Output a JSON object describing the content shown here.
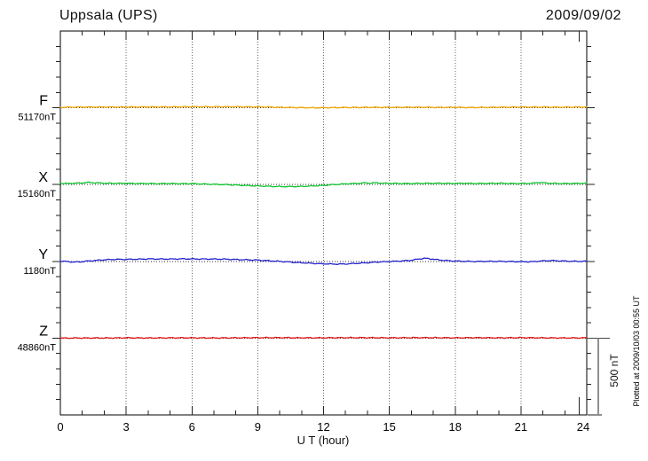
{
  "chart_data": {
    "type": "line",
    "title": "Uppsala (UPS)",
    "date": "2009/09/02",
    "xlabel": "U T (hour)",
    "plotted_note": "Plotted at 2009/10/03 00:55 UT",
    "x_range_hours": [
      0,
      24
    ],
    "x_major_tick_hours": [
      0,
      3,
      6,
      9,
      12,
      15,
      18,
      21,
      24
    ],
    "x_minor_tick_step_hours": 1,
    "x_gridline_hours": [
      3,
      6,
      9,
      12,
      15,
      18,
      21
    ],
    "y_total_span_nT": 2500,
    "y_minor_tick_step_nT": 100,
    "series_spacing_nT": 500,
    "grid": "dotted",
    "legend_position": "left-of-baselines",
    "scale_bar": {
      "label": "500 nT",
      "span_nT": 500
    },
    "series": [
      {
        "name": "F",
        "value_label": "51170nT",
        "baseline_nT": 51170,
        "color": "#F0A500",
        "offsets_nT": [
          [
            0,
            3
          ],
          [
            0.5,
            4
          ],
          [
            1,
            5
          ],
          [
            2,
            5
          ],
          [
            3,
            5
          ],
          [
            4,
            6
          ],
          [
            5,
            6
          ],
          [
            6,
            7
          ],
          [
            7,
            7
          ],
          [
            8,
            7
          ],
          [
            9,
            6
          ],
          [
            9.5,
            5
          ],
          [
            10,
            3
          ],
          [
            10.5,
            2
          ],
          [
            11,
            1
          ],
          [
            11.5,
            0
          ],
          [
            12,
            0
          ],
          [
            12.5,
            1
          ],
          [
            13,
            2
          ],
          [
            14,
            3
          ],
          [
            15,
            3
          ],
          [
            16,
            4
          ],
          [
            17,
            3
          ],
          [
            18,
            3
          ],
          [
            18.5,
            2
          ],
          [
            19,
            2
          ],
          [
            20,
            4
          ],
          [
            21,
            5
          ],
          [
            22,
            5
          ],
          [
            22.5,
            4
          ],
          [
            23,
            4
          ],
          [
            23.5,
            5
          ],
          [
            24,
            5
          ]
        ]
      },
      {
        "name": "X",
        "value_label": "15160nT",
        "baseline_nT": 15160,
        "color": "#0CC52C",
        "offsets_nT": [
          [
            0,
            8
          ],
          [
            0.3,
            7
          ],
          [
            0.7,
            9
          ],
          [
            1,
            11
          ],
          [
            1.3,
            14
          ],
          [
            1.6,
            12
          ],
          [
            2,
            9
          ],
          [
            2.5,
            8
          ],
          [
            3,
            8
          ],
          [
            3.5,
            7
          ],
          [
            4,
            7
          ],
          [
            4.5,
            6
          ],
          [
            5,
            7
          ],
          [
            5.5,
            6
          ],
          [
            6,
            6
          ],
          [
            6.5,
            4
          ],
          [
            7,
            2
          ],
          [
            7.5,
            0
          ],
          [
            8,
            -3
          ],
          [
            8.5,
            -6
          ],
          [
            9,
            -9
          ],
          [
            9.5,
            -11
          ],
          [
            10,
            -13
          ],
          [
            10.5,
            -13
          ],
          [
            11,
            -12
          ],
          [
            11.5,
            -9
          ],
          [
            12,
            -5
          ],
          [
            12.4,
            -1
          ],
          [
            12.8,
            3
          ],
          [
            13.2,
            6
          ],
          [
            13.6,
            8
          ],
          [
            13.9,
            12
          ],
          [
            14.1,
            9
          ],
          [
            14.4,
            12
          ],
          [
            14.7,
            9
          ],
          [
            15,
            8
          ],
          [
            15.5,
            7
          ],
          [
            16,
            7
          ],
          [
            16.5,
            8
          ],
          [
            17,
            9
          ],
          [
            17.5,
            8
          ],
          [
            18,
            7
          ],
          [
            18.4,
            9
          ],
          [
            18.8,
            7
          ],
          [
            19.2,
            7
          ],
          [
            19.6,
            8
          ],
          [
            20,
            9
          ],
          [
            20.5,
            7
          ],
          [
            21,
            7
          ],
          [
            21.5,
            8
          ],
          [
            21.8,
            14
          ],
          [
            22.1,
            11
          ],
          [
            22.4,
            8
          ],
          [
            22.8,
            7
          ],
          [
            23.2,
            7
          ],
          [
            23.6,
            8
          ],
          [
            24,
            9
          ]
        ]
      },
      {
        "name": "Y",
        "value_label": "1180nT",
        "baseline_nT": 1180,
        "color": "#2222CC",
        "offsets_nT": [
          [
            0,
            2
          ],
          [
            0.3,
            -1
          ],
          [
            0.6,
            -5
          ],
          [
            0.9,
            -3
          ],
          [
            1.2,
            1
          ],
          [
            1.5,
            5
          ],
          [
            2,
            10
          ],
          [
            2.5,
            13
          ],
          [
            3,
            13
          ],
          [
            3.5,
            14
          ],
          [
            4,
            16
          ],
          [
            4.5,
            15
          ],
          [
            5,
            15
          ],
          [
            5.5,
            16
          ],
          [
            6,
            16
          ],
          [
            6.5,
            15
          ],
          [
            7,
            15
          ],
          [
            7.5,
            14
          ],
          [
            8,
            12
          ],
          [
            8.5,
            10
          ],
          [
            9,
            8
          ],
          [
            9.5,
            4
          ],
          [
            10,
            0
          ],
          [
            10.5,
            -5
          ],
          [
            11,
            -9
          ],
          [
            11.5,
            -13
          ],
          [
            12,
            -16
          ],
          [
            12.5,
            -18
          ],
          [
            13,
            -17
          ],
          [
            13.5,
            -13
          ],
          [
            14,
            -9
          ],
          [
            14.5,
            -4
          ],
          [
            15,
            -1
          ],
          [
            15.5,
            2
          ],
          [
            16,
            7
          ],
          [
            16.3,
            14
          ],
          [
            16.6,
            20
          ],
          [
            16.9,
            16
          ],
          [
            17.2,
            10
          ],
          [
            17.6,
            5
          ],
          [
            18,
            2
          ],
          [
            18.5,
            0
          ],
          [
            19,
            -1
          ],
          [
            19.5,
            0
          ],
          [
            20,
            0
          ],
          [
            20.5,
            -1
          ],
          [
            21,
            -2
          ],
          [
            21.4,
            -3
          ],
          [
            21.8,
            1
          ],
          [
            22.1,
            4
          ],
          [
            22.4,
            5
          ],
          [
            22.8,
            3
          ],
          [
            23.2,
            1
          ],
          [
            23.6,
            0
          ],
          [
            24,
            1
          ]
        ]
      },
      {
        "name": "Z",
        "value_label": "48860nT",
        "baseline_nT": 48860,
        "color": "#DD1414",
        "offsets_nT": [
          [
            0,
            0
          ],
          [
            1,
            1
          ],
          [
            2,
            1
          ],
          [
            3,
            2
          ],
          [
            4,
            1
          ],
          [
            5,
            2
          ],
          [
            6,
            2
          ],
          [
            7,
            1
          ],
          [
            8,
            2
          ],
          [
            9,
            3
          ],
          [
            10,
            3
          ],
          [
            11,
            2
          ],
          [
            12,
            2
          ],
          [
            13,
            3
          ],
          [
            14,
            3
          ],
          [
            15,
            2
          ],
          [
            16,
            3
          ],
          [
            17,
            3
          ],
          [
            18,
            2
          ],
          [
            19,
            3
          ],
          [
            20,
            2
          ],
          [
            21,
            3
          ],
          [
            22,
            2
          ],
          [
            23,
            1
          ],
          [
            24,
            2
          ]
        ]
      }
    ]
  }
}
